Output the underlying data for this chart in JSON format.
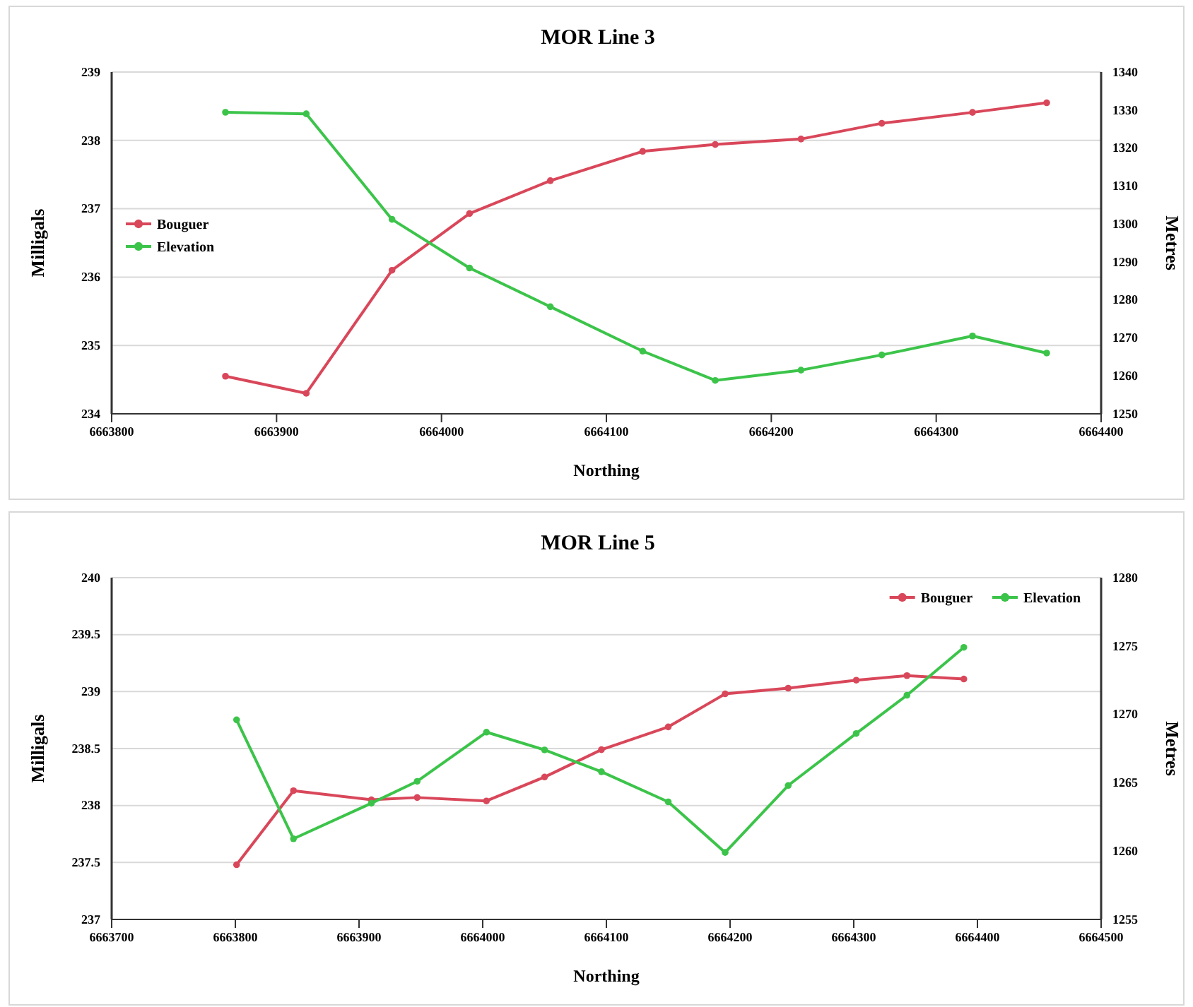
{
  "chart_data": [
    {
      "type": "line",
      "title": "MOR Line 3",
      "xlabel": "Northing",
      "ylabel": "Milligals",
      "y2label": "Metres",
      "x": [
        6663869,
        6663918,
        6663970,
        6664017,
        6664066,
        6664122,
        6664166,
        6664218,
        6664267,
        6664322,
        6664367
      ],
      "series": [
        {
          "name": "Bouguer",
          "color": "#d9475a",
          "values": [
            234.55,
            234.3,
            236.1,
            236.93,
            237.41,
            237.84,
            237.94,
            238.02,
            238.25,
            238.41,
            238.55
          ]
        },
        {
          "name": "Elevation",
          "color": "#3cc44a",
          "axis": "y2",
          "values": [
            1329.4,
            1329,
            1301.2,
            1288.4,
            1278.2,
            1266.5,
            1258.8,
            1261.5,
            1265.5,
            1270.5,
            1266
          ]
        }
      ],
      "xlim": [
        6663800,
        6664400
      ],
      "xticks": [
        6663800,
        6663900,
        6664000,
        6664100,
        6664200,
        6664300,
        6664400
      ],
      "ylim": [
        234,
        239
      ],
      "yticks": [
        234,
        235,
        236,
        237,
        238,
        239
      ],
      "y2lim": [
        1250,
        1340
      ],
      "y2ticks": [
        1250,
        1260,
        1270,
        1280,
        1290,
        1300,
        1310,
        1320,
        1330,
        1340
      ],
      "grid": "y",
      "legend": "left",
      "marker": "circle",
      "line_style": "solid"
    },
    {
      "type": "line",
      "title": "MOR Line 5",
      "xlabel": "Northing",
      "ylabel": "Milligals",
      "y2label": "Metres",
      "x": [
        6663801,
        6663847,
        6663910,
        6663947,
        6664003,
        6664050,
        6664096,
        6664150,
        6664196,
        6664247,
        6664302,
        6664343,
        6664389
      ],
      "series": [
        {
          "name": "Bouguer",
          "color": "#d9475a",
          "values": [
            237.48,
            238.13,
            238.05,
            238.07,
            238.04,
            238.25,
            238.49,
            238.69,
            238.98,
            239.03,
            239.1,
            239.14,
            239.11
          ]
        },
        {
          "name": "Elevation",
          "color": "#3cc44a",
          "axis": "y2",
          "values": [
            1269.6,
            1260.9,
            1263.5,
            1265.1,
            1268.7,
            1267.4,
            1265.8,
            1263.6,
            1259.9,
            1264.8,
            1268.6,
            1271.4,
            1274.9
          ]
        }
      ],
      "xlim": [
        6663700,
        6664500
      ],
      "xticks": [
        6663700,
        6663800,
        6663900,
        6664000,
        6664100,
        6664200,
        6664300,
        6664400,
        6664500
      ],
      "ylim": [
        237,
        240
      ],
      "yticks": [
        237,
        237.5,
        238,
        238.5,
        239,
        239.5,
        240
      ],
      "y2lim": [
        1255,
        1280
      ],
      "y2ticks": [
        1255,
        1260,
        1265,
        1270,
        1275,
        1280
      ],
      "grid": "y",
      "legend": "top right",
      "marker": "circle",
      "line_style": "solid"
    }
  ]
}
